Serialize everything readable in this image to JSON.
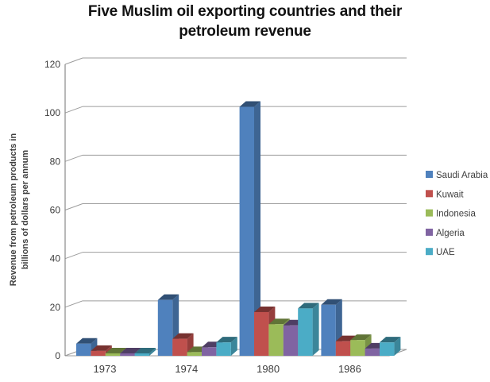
{
  "title": {
    "line1": "Five Muslim oil exporting countries and their",
    "line2": "petroleum revenue"
  },
  "chart_data": {
    "type": "bar",
    "style": "3d-clustered-column",
    "title": "Five Muslim oil exporting countries and their petroleum revenue",
    "categories": [
      "1973",
      "1974",
      "1980",
      "1986"
    ],
    "series": [
      {
        "name": "Saudi Arabia",
        "color": "#4F81BD",
        "values": [
          5,
          23,
          102.5,
          21
        ]
      },
      {
        "name": "Kuwait",
        "color": "#C0504D",
        "values": [
          2,
          7,
          18,
          6
        ]
      },
      {
        "name": "Indonesia",
        "color": "#9BBB59",
        "values": [
          1,
          1.5,
          13,
          6.5
        ]
      },
      {
        "name": "Algeria",
        "color": "#8064A2",
        "values": [
          1,
          3.5,
          12.5,
          3
        ]
      },
      {
        "name": "UAE",
        "color": "#4BACC6",
        "values": [
          1,
          5.5,
          19.5,
          5.5
        ]
      }
    ],
    "xlabel": "",
    "ylabel": "Revenue from petroleum products in billions of dollars per annum",
    "ylabel_lines": [
      "Revenue from petroleum products in",
      "billions of dollars per annum"
    ],
    "ylim": [
      0,
      120
    ],
    "yticks": [
      0,
      20,
      40,
      60,
      80,
      100,
      120
    ],
    "grid": true,
    "legend_position": "right",
    "legend": [
      "Saudi Arabia",
      "Kuwait",
      "Indonesia",
      "Algeria",
      "UAE"
    ]
  },
  "colors": {
    "background": "#FFFFFF",
    "gridline": "#9C9C9C",
    "axis": "#8A8A8A",
    "floor_fill": "#FFFFFF",
    "text": "#3D3D3D",
    "title_text": "#111111"
  }
}
